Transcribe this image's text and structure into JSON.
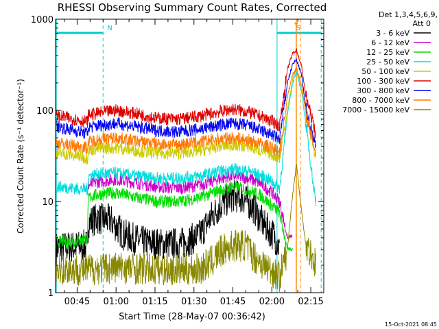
{
  "chart_data": {
    "type": "line",
    "title": "RHESSI Observing Summary Count Rates, Corrected",
    "xlabel": "Start Time (28-May-07 00:36:42)",
    "ylabel": "Corrected Count Rate (s⁻¹ detector⁻¹)",
    "yscale": "log",
    "ylim": [
      1,
      1000
    ],
    "xlim_minutes": [
      36.7,
      140
    ],
    "x_ticks": [
      {
        "minute": 45,
        "label": "00:45"
      },
      {
        "minute": 60,
        "label": "01:00"
      },
      {
        "minute": 75,
        "label": "01:15"
      },
      {
        "minute": 90,
        "label": "01:30"
      },
      {
        "minute": 105,
        "label": "01:45"
      },
      {
        "minute": 120,
        "label": "02:00"
      },
      {
        "minute": 135,
        "label": "02:15"
      }
    ],
    "y_ticks": [
      {
        "value": 1,
        "label": "1"
      },
      {
        "value": 10,
        "label": "10"
      },
      {
        "value": 100,
        "label": "100"
      },
      {
        "value": 1000,
        "label": "1000"
      }
    ],
    "legend_header": [
      "Det 1,3,4,5,6,9,",
      "Att 0"
    ],
    "legend_position": "right",
    "series": [
      {
        "name": "3 - 6 keV",
        "color": "#000000",
        "points": [
          [
            37,
            3.1
          ],
          [
            44,
            3.2
          ],
          [
            49,
            3.3
          ],
          [
            49.3,
            6.0
          ],
          [
            53,
            6.5
          ],
          [
            58,
            6.2
          ],
          [
            63,
            4.3
          ],
          [
            70,
            3.6
          ],
          [
            78,
            3.4
          ],
          [
            86,
            3.5
          ],
          [
            92,
            4.2
          ],
          [
            97,
            7.0
          ],
          [
            101,
            9.5
          ],
          [
            105,
            11.5
          ],
          [
            109,
            11.0
          ],
          [
            113,
            8.5
          ],
          [
            117,
            5.5
          ],
          [
            121,
            4.2
          ],
          [
            123,
            3.0
          ]
        ]
      },
      {
        "name": "6 - 12 keV",
        "color": "#cc00cc",
        "points": [
          [
            49.3,
            15
          ],
          [
            53,
            16.5
          ],
          [
            60,
            17.5
          ],
          [
            68,
            16
          ],
          [
            76,
            14.5
          ],
          [
            84,
            14
          ],
          [
            92,
            15
          ],
          [
            99,
            17.5
          ],
          [
            105,
            19
          ],
          [
            111,
            18
          ],
          [
            116,
            15.5
          ],
          [
            120,
            12.5
          ],
          [
            123,
            10
          ],
          [
            126,
            4
          ],
          [
            128,
            4.2
          ]
        ]
      },
      {
        "name": "12 - 25 keV",
        "color": "#00dd00",
        "points": [
          [
            37,
            3.6
          ],
          [
            44,
            3.7
          ],
          [
            49,
            3.8
          ],
          [
            49.3,
            11
          ],
          [
            53,
            12
          ],
          [
            60,
            12.5
          ],
          [
            68,
            11
          ],
          [
            76,
            10
          ],
          [
            84,
            10
          ],
          [
            92,
            11
          ],
          [
            99,
            13
          ],
          [
            105,
            14.5
          ],
          [
            111,
            13.5
          ],
          [
            116,
            11.5
          ],
          [
            120,
            9
          ],
          [
            123,
            7.5
          ],
          [
            126,
            3
          ],
          [
            128,
            3
          ]
        ]
      },
      {
        "name": "25 - 50 keV",
        "color": "#00dddd",
        "points": [
          [
            37,
            14.5
          ],
          [
            44,
            14
          ],
          [
            49,
            13.5
          ],
          [
            49.3,
            19
          ],
          [
            53,
            20
          ],
          [
            60,
            20.5
          ],
          [
            68,
            19
          ],
          [
            76,
            18
          ],
          [
            84,
            18
          ],
          [
            92,
            19
          ],
          [
            99,
            21
          ],
          [
            105,
            22.5
          ],
          [
            111,
            21.5
          ],
          [
            116,
            19
          ],
          [
            120,
            16.5
          ],
          [
            123,
            14
          ],
          [
            126,
            90
          ],
          [
            128,
            200
          ],
          [
            129.5,
            260
          ],
          [
            131.5,
            160
          ],
          [
            134,
            45
          ],
          [
            136,
            15
          ],
          [
            137,
            10
          ]
        ]
      },
      {
        "name": "50 - 100 keV",
        "color": "#cccc00",
        "points": [
          [
            37,
            34
          ],
          [
            44,
            32
          ],
          [
            49,
            30
          ],
          [
            49.3,
            37
          ],
          [
            53,
            38
          ],
          [
            60,
            39
          ],
          [
            68,
            36
          ],
          [
            76,
            34
          ],
          [
            84,
            34
          ],
          [
            92,
            36
          ],
          [
            99,
            40
          ],
          [
            105,
            42
          ],
          [
            111,
            40
          ],
          [
            116,
            36
          ],
          [
            120,
            33
          ],
          [
            123,
            30
          ],
          [
            126,
            100
          ],
          [
            128,
            220
          ],
          [
            129.5,
            300
          ],
          [
            131.5,
            170
          ],
          [
            134,
            75
          ],
          [
            137,
            30
          ]
        ]
      },
      {
        "name": "100 - 300 keV",
        "color": "#dd0000",
        "points": [
          [
            37,
            88
          ],
          [
            44,
            80
          ],
          [
            49,
            75
          ],
          [
            49.3,
            88
          ],
          [
            53,
            93
          ],
          [
            60,
            100
          ],
          [
            68,
            92
          ],
          [
            76,
            82
          ],
          [
            84,
            80
          ],
          [
            92,
            86
          ],
          [
            99,
            96
          ],
          [
            105,
            103
          ],
          [
            111,
            96
          ],
          [
            116,
            85
          ],
          [
            120,
            76
          ],
          [
            123,
            68
          ],
          [
            126,
            280
          ],
          [
            128,
            420
          ],
          [
            129.5,
            460
          ],
          [
            131.5,
            300
          ],
          [
            133,
            150
          ],
          [
            135,
            90
          ],
          [
            137,
            55
          ]
        ]
      },
      {
        "name": "300 - 800 keV",
        "color": "#0000ee",
        "points": [
          [
            37,
            67
          ],
          [
            44,
            60
          ],
          [
            49,
            56
          ],
          [
            49.3,
            65
          ],
          [
            53,
            68
          ],
          [
            60,
            72
          ],
          [
            68,
            66
          ],
          [
            76,
            60
          ],
          [
            84,
            58
          ],
          [
            92,
            62
          ],
          [
            99,
            68
          ],
          [
            105,
            72
          ],
          [
            111,
            68
          ],
          [
            116,
            60
          ],
          [
            120,
            54
          ],
          [
            123,
            48
          ],
          [
            126,
            200
          ],
          [
            128,
            320
          ],
          [
            129.5,
            360
          ],
          [
            131.5,
            240
          ],
          [
            133,
            110
          ],
          [
            135,
            65
          ],
          [
            137,
            40
          ]
        ]
      },
      {
        "name": "800 - 7000 keV",
        "color": "#ff7700",
        "points": [
          [
            37,
            44
          ],
          [
            44,
            41
          ],
          [
            49,
            39
          ],
          [
            49.3,
            45
          ],
          [
            53,
            48
          ],
          [
            60,
            50
          ],
          [
            68,
            46
          ],
          [
            76,
            43
          ],
          [
            84,
            42
          ],
          [
            92,
            45
          ],
          [
            99,
            48
          ],
          [
            105,
            50
          ],
          [
            111,
            47
          ],
          [
            116,
            43
          ],
          [
            120,
            39
          ],
          [
            123,
            35
          ],
          [
            126,
            140
          ],
          [
            128,
            250
          ],
          [
            129.5,
            290
          ],
          [
            131.5,
            190
          ],
          [
            133,
            95
          ],
          [
            135,
            55
          ],
          [
            137,
            34
          ]
        ]
      },
      {
        "name": "7000 - 15000 keV",
        "color": "#888800",
        "points": [
          [
            37,
            1.8
          ],
          [
            49,
            1.8
          ],
          [
            60,
            1.9
          ],
          [
            76,
            1.8
          ],
          [
            92,
            1.8
          ],
          [
            97,
            2.2
          ],
          [
            100,
            2.8
          ],
          [
            105,
            3.3
          ],
          [
            110,
            3.3
          ],
          [
            113,
            2.5
          ],
          [
            117,
            2
          ],
          [
            123,
            1.5
          ],
          [
            126,
            3
          ],
          [
            128,
            12
          ],
          [
            129.5,
            26
          ],
          [
            131,
            10
          ],
          [
            133,
            3.5
          ],
          [
            137,
            2
          ]
        ]
      }
    ],
    "annotations": [
      {
        "label": "N",
        "color": "#00cccc",
        "start_minute": 37,
        "end_minute": 55
      },
      {
        "label": "S",
        "color": "#00cccc",
        "start_minute": 122,
        "end_minute": 139
      },
      {
        "label": "",
        "color": "#ff8800",
        "minute": 130.2
      }
    ]
  },
  "footer_timestamp": "15-Oct-2021 08:45"
}
